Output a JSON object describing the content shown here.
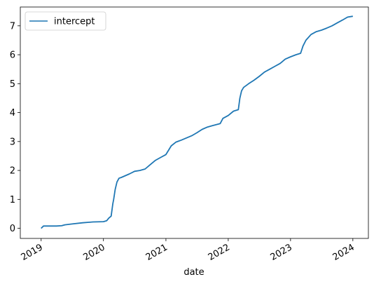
{
  "chart_data": {
    "type": "line",
    "title": "",
    "xlabel": "date",
    "ylabel": "",
    "x_ticks": [
      "2019",
      "2020",
      "2021",
      "2022",
      "2023",
      "2024"
    ],
    "y_ticks": [
      0,
      1,
      2,
      3,
      4,
      5,
      6,
      7
    ],
    "xlim": [
      "2018-09-01",
      "2024-04-01"
    ],
    "ylim": [
      -0.35,
      7.65
    ],
    "legend": {
      "position": "top-left",
      "entries": [
        "intercept"
      ]
    },
    "grid": false,
    "colors": {
      "series": "#1f77b4",
      "axes": "#000000"
    },
    "series": [
      {
        "name": "intercept",
        "x": [
          "2019-01-01",
          "2019-01-15",
          "2019-02-01",
          "2019-04-01",
          "2019-05-01",
          "2019-05-20",
          "2019-07-01",
          "2019-09-01",
          "2019-11-01",
          "2020-01-01",
          "2020-01-20",
          "2020-02-01",
          "2020-02-15",
          "2020-02-25",
          "2020-03-01",
          "2020-03-10",
          "2020-03-20",
          "2020-04-01",
          "2020-04-15",
          "2020-06-01",
          "2020-07-01",
          "2020-08-01",
          "2020-09-01",
          "2020-10-01",
          "2020-11-01",
          "2020-12-01",
          "2021-01-01",
          "2021-02-01",
          "2021-03-01",
          "2021-04-01",
          "2021-06-01",
          "2021-07-01",
          "2021-08-01",
          "2021-09-01",
          "2021-10-01",
          "2021-11-15",
          "2021-12-01",
          "2022-01-01",
          "2022-02-01",
          "2022-03-01",
          "2022-03-10",
          "2022-03-20",
          "2022-04-01",
          "2022-05-01",
          "2022-06-01",
          "2022-07-01",
          "2022-08-01",
          "2022-09-01",
          "2022-10-01",
          "2022-11-01",
          "2022-12-01",
          "2023-01-01",
          "2023-02-01",
          "2023-03-01",
          "2023-03-15",
          "2023-04-01",
          "2023-05-01",
          "2023-06-01",
          "2023-07-01",
          "2023-08-01",
          "2023-09-01",
          "2023-10-01",
          "2023-11-01",
          "2023-12-01",
          "2024-01-01"
        ],
        "y": [
          0.0,
          0.08,
          0.08,
          0.08,
          0.09,
          0.12,
          0.15,
          0.19,
          0.22,
          0.23,
          0.26,
          0.35,
          0.42,
          0.85,
          1.0,
          1.35,
          1.6,
          1.73,
          1.76,
          1.88,
          1.97,
          2.0,
          2.05,
          2.2,
          2.35,
          2.45,
          2.55,
          2.85,
          2.98,
          3.05,
          3.2,
          3.3,
          3.42,
          3.5,
          3.55,
          3.62,
          3.8,
          3.9,
          4.05,
          4.1,
          4.5,
          4.75,
          4.87,
          5.0,
          5.12,
          5.25,
          5.4,
          5.5,
          5.6,
          5.7,
          5.85,
          5.93,
          6.0,
          6.05,
          6.3,
          6.5,
          6.7,
          6.8,
          6.85,
          6.92,
          7.0,
          7.1,
          7.2,
          7.3,
          7.33
        ]
      }
    ]
  }
}
